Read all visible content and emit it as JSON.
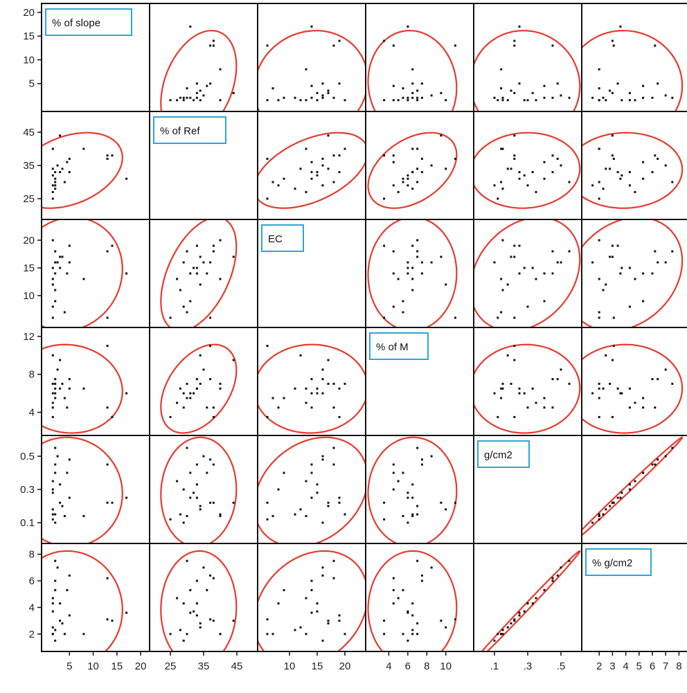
{
  "chart_data": {
    "type": "scatter",
    "subtype": "scatterplot-matrix",
    "ellipse_color": "#e8392c",
    "label_box_color": "#2aa6d8",
    "point_color": "#111111",
    "variables": [
      {
        "label": "% of slope",
        "range": [
          0,
          21
        ],
        "ticks": [
          "5",
          "10",
          "15",
          "20"
        ],
        "tick_values": [
          5,
          10,
          15,
          20
        ],
        "yticks": [
          "5",
          "10",
          "15",
          "20"
        ],
        "ytick_values": [
          5,
          10,
          15,
          20
        ]
      },
      {
        "label": "% of Ref",
        "range": [
          20,
          50
        ],
        "ticks": [
          "25",
          "35",
          "45"
        ],
        "tick_values": [
          25,
          35,
          45
        ],
        "yticks": [
          "25",
          "35",
          "45"
        ],
        "ytick_values": [
          25,
          35,
          45
        ]
      },
      {
        "label": "EC",
        "range": [
          5,
          23
        ],
        "ticks": [
          "10",
          "15",
          "20"
        ],
        "tick_values": [
          10,
          15,
          20
        ],
        "yticks": [
          "10",
          "15",
          "20"
        ],
        "ytick_values": [
          10,
          15,
          20
        ]
      },
      {
        "label": "% of M",
        "range": [
          2,
          12.5
        ],
        "ticks": [
          "4",
          "6",
          "8",
          "10"
        ],
        "tick_values": [
          4,
          6,
          8,
          10
        ],
        "yticks": [
          "4",
          "8",
          "12"
        ],
        "ytick_values": [
          4,
          8,
          12
        ]
      },
      {
        "label": "g/cm2",
        "range": [
          0,
          0.6
        ],
        "ticks": [
          ".1",
          ".3",
          ".5"
        ],
        "tick_values": [
          0.1,
          0.3,
          0.5
        ],
        "yticks": [
          "0.1",
          "0.3",
          "0.5"
        ],
        "ytick_values": [
          0.1,
          0.3,
          0.5
        ]
      },
      {
        "label": "% g/cm2",
        "range": [
          1,
          8.5
        ],
        "ticks": [
          "2",
          "3",
          "4",
          "5",
          "6",
          "7",
          "8"
        ],
        "tick_values": [
          2,
          3,
          4,
          5,
          6,
          7,
          8
        ],
        "yticks": [
          "2",
          "4",
          "6",
          "8"
        ],
        "ytick_values": [
          2,
          4,
          6,
          8
        ]
      }
    ],
    "observations": [
      [
        1.5,
        25,
        6,
        3.5,
        0.12,
        2.0
      ],
      [
        1.5,
        29,
        8,
        4.5,
        0.3,
        4.3
      ],
      [
        2,
        31,
        9,
        5.5,
        0.4,
        5.3
      ],
      [
        2,
        28,
        11,
        6.5,
        0.15,
        2.3
      ],
      [
        2,
        33,
        14,
        7.5,
        0.45,
        6.0
      ],
      [
        2.5,
        35,
        16,
        8.5,
        0.5,
        7.0
      ],
      [
        3,
        44,
        17,
        9.5,
        0.22,
        3.0
      ],
      [
        1.5,
        32,
        15,
        6.0,
        0.28,
        3.7
      ],
      [
        1.5,
        27,
        13,
        5.0,
        0.35,
        4.7
      ],
      [
        2,
        30,
        18,
        7.0,
        0.55,
        7.5
      ],
      [
        1.5,
        34,
        12,
        10.0,
        0.18,
        2.5
      ],
      [
        2,
        29,
        16,
        6.0,
        0.1,
        1.5
      ],
      [
        3,
        33,
        15,
        6.5,
        0.33,
        4.3
      ],
      [
        4,
        30,
        7,
        5.5,
        0.14,
        2.0
      ],
      [
        4.5,
        36,
        14,
        4.5,
        0.4,
        5.3
      ],
      [
        5,
        33,
        19,
        6.5,
        0.25,
        3.4
      ],
      [
        5,
        37,
        16,
        7.5,
        0.48,
        6.4
      ],
      [
        3.5,
        34,
        17,
        7.0,
        0.2,
        2.8
      ],
      [
        1.5,
        40,
        20,
        7.0,
        0.15,
        2.0
      ],
      [
        8,
        40,
        13,
        6.5,
        0.14,
        2.0
      ],
      [
        13,
        38,
        18,
        4.5,
        0.45,
        6.2
      ],
      [
        13,
        37,
        6,
        11.0,
        0.22,
        3.1
      ],
      [
        17,
        31,
        14,
        6.0,
        0.25,
        3.6
      ],
      [
        14,
        38,
        19,
        3.5,
        0.22,
        3.0
      ]
    ]
  }
}
